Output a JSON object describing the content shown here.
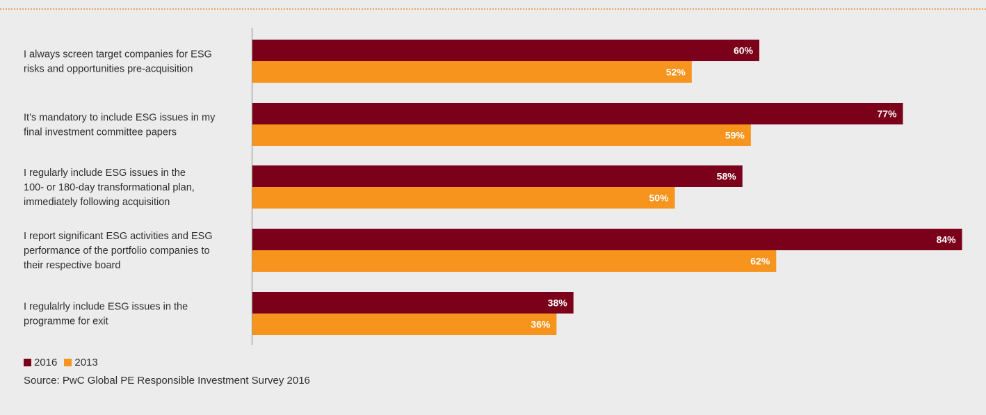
{
  "colors": {
    "series_2016": "#7b0019",
    "series_2013": "#f7941d",
    "axis": "#9a9a9a",
    "rule": "#e8a25c"
  },
  "chart_data": {
    "type": "bar",
    "orientation": "horizontal",
    "categories": [
      [
        "I always screen target companies for ESG",
        "risks and opportunities pre-acquisition"
      ],
      [
        "It’s mandatory to include ESG issues in my",
        "final investment committee papers"
      ],
      [
        "I regularly include ESG issues in the",
        "100- or 180-day transformational plan,",
        "immediately following acquisition"
      ],
      [
        "I report significant ESG activities and ESG",
        "performance of the portfolio companies to",
        "their respective board"
      ],
      [
        "I regulalrly include ESG issues in the",
        "programme for exit"
      ]
    ],
    "series": [
      {
        "name": "2016",
        "values": [
          60,
          77,
          58,
          84,
          38
        ]
      },
      {
        "name": "2013",
        "values": [
          52,
          59,
          50,
          62,
          36
        ]
      }
    ],
    "value_suffix": "%",
    "xlim": [
      0,
      100
    ],
    "grid": false,
    "legend_position": "bottom-left"
  },
  "legend": {
    "items": [
      {
        "label": "2016",
        "color": "#7b0019"
      },
      {
        "label": "2013",
        "color": "#f7941d"
      }
    ]
  },
  "source": "Source: PwC Global PE Responsible Investment Survey 2016"
}
